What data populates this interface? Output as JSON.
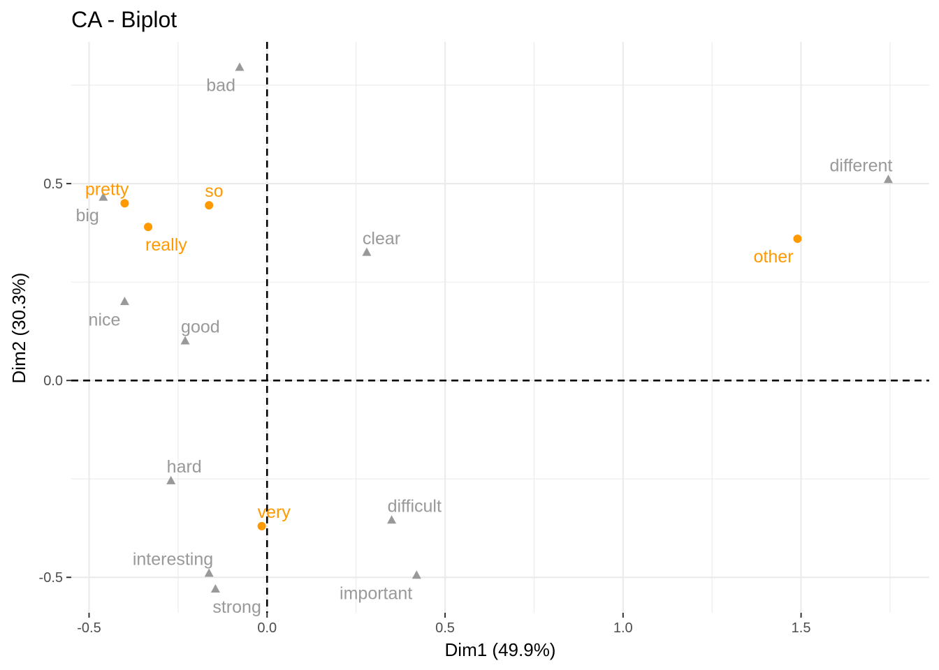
{
  "chart_data": {
    "type": "scatter",
    "title": "CA - Biplot",
    "xlabel": "Dim1 (49.9%)",
    "ylabel": "Dim2 (30.3%)",
    "xlim": [
      -0.55,
      1.86
    ],
    "ylim": [
      -0.59,
      0.86
    ],
    "xticks": [
      -0.5,
      0.0,
      0.5,
      1.0,
      1.5
    ],
    "xtick_labels": [
      "-0.5",
      "0.0",
      "0.5",
      "1.0",
      "1.5"
    ],
    "yticks": [
      -0.5,
      0.0,
      0.5
    ],
    "ytick_labels": [
      "-0.5",
      "0.0",
      "0.5"
    ],
    "grid": true,
    "reference_lines": {
      "x": 0,
      "y": 0,
      "style": "dashed"
    },
    "colors": {
      "rows": "#FF9900",
      "cols": "#999999",
      "grid": "#EBEBEB",
      "ref": "#000000"
    },
    "series": [
      {
        "marker": "circle",
        "color": "#FF9900",
        "points": [
          {
            "label": "pretty",
            "x": -0.4,
            "y": 0.45,
            "label_pos": "left-above"
          },
          {
            "label": "so",
            "x": -0.163,
            "y": 0.445,
            "label_pos": "right-above"
          },
          {
            "label": "really",
            "x": -0.334,
            "y": 0.39,
            "label_pos": "right-below"
          },
          {
            "label": "other",
            "x": 1.49,
            "y": 0.36,
            "label_pos": "left-below"
          },
          {
            "label": "very",
            "x": -0.015,
            "y": -0.37,
            "label_pos": "right-above"
          }
        ]
      },
      {
        "marker": "triangle",
        "color": "#999999",
        "points": [
          {
            "label": "bad",
            "x": -0.077,
            "y": 0.795,
            "label_pos": "left-below"
          },
          {
            "label": "different",
            "x": 1.745,
            "y": 0.51,
            "label_pos": "left-above"
          },
          {
            "label": "big",
            "x": -0.46,
            "y": 0.465,
            "label_pos": "left-below"
          },
          {
            "label": "clear",
            "x": 0.28,
            "y": 0.325,
            "label_pos": "right-above"
          },
          {
            "label": "nice",
            "x": -0.4,
            "y": 0.2,
            "label_pos": "left-below"
          },
          {
            "label": "good",
            "x": -0.23,
            "y": 0.1,
            "label_pos": "right-above"
          },
          {
            "label": "hard",
            "x": -0.27,
            "y": -0.255,
            "label_pos": "right-above"
          },
          {
            "label": "difficult",
            "x": 0.35,
            "y": -0.355,
            "label_pos": "right-above"
          },
          {
            "label": "interesting",
            "x": -0.163,
            "y": -0.49,
            "label_pos": "left-above"
          },
          {
            "label": "important",
            "x": 0.42,
            "y": -0.495,
            "label_pos": "left-below"
          },
          {
            "label": "strong",
            "x": -0.145,
            "y": -0.53,
            "label_pos": "right-below"
          }
        ]
      }
    ]
  }
}
